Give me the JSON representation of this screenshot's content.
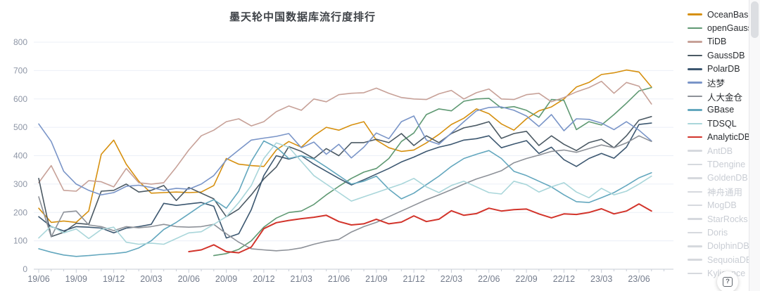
{
  "chart": {
    "title": "墨天轮中国数据库流行度排行"
  },
  "help": {
    "icon_glyph": "?"
  },
  "axes": {
    "y_tick_labels": [
      "0",
      "100",
      "200",
      "300",
      "400",
      "500",
      "600",
      "700",
      "800"
    ],
    "x_tick_labels": [
      "19/06",
      "19/09",
      "19/12",
      "20/03",
      "20/06",
      "20/09",
      "20/12",
      "21/03",
      "21/06",
      "21/09",
      "21/12",
      "22/03",
      "22/06",
      "22/09",
      "22/12",
      "23/03",
      "23/06"
    ]
  },
  "legend": {
    "items": [
      {
        "id": "oceanbase",
        "label": "OceanBase",
        "color": "#D6900F",
        "active": true
      },
      {
        "id": "opengauss",
        "label": "openGauss",
        "color": "#5F9973",
        "active": true
      },
      {
        "id": "tidb",
        "label": "TiDB",
        "color": "#C7A198",
        "active": true
      },
      {
        "id": "gaussdb",
        "label": "GaussDB",
        "color": "#4C5A64",
        "active": true
      },
      {
        "id": "polardb",
        "label": "PolarDB",
        "color": "#3C5770",
        "active": true
      },
      {
        "id": "dameng",
        "label": "达梦",
        "color": "#7A95C8",
        "active": true
      },
      {
        "id": "kingbase",
        "label": "人大金仓",
        "color": "#8D9198",
        "active": true
      },
      {
        "id": "gbase",
        "label": "GBase",
        "color": "#63A7BE",
        "active": true
      },
      {
        "id": "tdsql",
        "label": "TDSQL",
        "color": "#A9D6DA",
        "active": true
      },
      {
        "id": "analyticdb",
        "label": "AnalyticDB",
        "color": "#D2342B",
        "active": true
      },
      {
        "id": "antdb",
        "label": "AntDB",
        "color": "#d6d9de",
        "active": false
      },
      {
        "id": "tdengine",
        "label": "TDengine",
        "color": "#d6d9de",
        "active": false
      },
      {
        "id": "goldendb",
        "label": "GoldenDB",
        "color": "#d6d9de",
        "active": false
      },
      {
        "id": "shenzhou-tongyong",
        "label": "神舟通用",
        "color": "#d6d9de",
        "active": false
      },
      {
        "id": "mogdb",
        "label": "MogDB",
        "color": "#d6d9de",
        "active": false
      },
      {
        "id": "starrocks",
        "label": "StarRocks",
        "color": "#d6d9de",
        "active": false
      },
      {
        "id": "doris",
        "label": "Doris",
        "color": "#d6d9de",
        "active": false
      },
      {
        "id": "dolphindb",
        "label": "DolphinDB",
        "color": "#d6d9de",
        "active": false
      },
      {
        "id": "sequoiadb",
        "label": "SequoiaDB",
        "color": "#d6d9de",
        "active": false
      },
      {
        "id": "kyligence",
        "label": "Kyligence",
        "color": "#d6d9de",
        "active": false
      }
    ]
  },
  "chart_data": {
    "type": "line",
    "title": "墨天轮中国数据库流行度排行",
    "xlabel": "",
    "ylabel": "",
    "ylim": [
      0,
      800
    ],
    "y_ticks": [
      0,
      100,
      200,
      300,
      400,
      500,
      600,
      700,
      800
    ],
    "grid": true,
    "legend_position": "right",
    "x_label_every_n_months": 3,
    "x": [
      "19/06",
      "19/07",
      "19/08",
      "19/09",
      "19/10",
      "19/11",
      "19/12",
      "20/01",
      "20/02",
      "20/03",
      "20/04",
      "20/05",
      "20/06",
      "20/07",
      "20/08",
      "20/09",
      "20/10",
      "20/11",
      "20/12",
      "21/01",
      "21/02",
      "21/03",
      "21/04",
      "21/05",
      "21/06",
      "21/07",
      "21/08",
      "21/09",
      "21/10",
      "21/11",
      "21/12",
      "22/01",
      "22/02",
      "22/03",
      "22/04",
      "22/05",
      "22/06",
      "22/07",
      "22/08",
      "22/09",
      "22/10",
      "22/11",
      "22/12",
      "23/01",
      "23/02",
      "23/03",
      "23/04",
      "23/05",
      "23/06",
      "23/07"
    ],
    "series": [
      {
        "id": "oceanbase",
        "name": "OceanBase",
        "color": "#D6900F",
        "values": [
          215,
          165,
          170,
          165,
          205,
          405,
          455,
          370,
          310,
          268,
          270,
          272,
          270,
          272,
          295,
          390,
          370,
          365,
          362,
          420,
          450,
          430,
          470,
          500,
          490,
          508,
          520,
          455,
          428,
          415,
          420,
          445,
          475,
          510,
          532,
          565,
          548,
          512,
          490,
          530,
          558,
          572,
          600,
          642,
          658,
          686,
          692,
          702,
          695,
          642
        ]
      },
      {
        "id": "opengauss",
        "name": "openGauss",
        "color": "#5F9973",
        "values": [
          null,
          null,
          null,
          null,
          null,
          null,
          null,
          null,
          null,
          null,
          null,
          null,
          null,
          null,
          48,
          55,
          70,
          100,
          148,
          180,
          200,
          205,
          228,
          262,
          292,
          320,
          342,
          355,
          390,
          450,
          480,
          545,
          565,
          558,
          592,
          600,
          602,
          568,
          573,
          560,
          535,
          598,
          595,
          492,
          520,
          508,
          545,
          585,
          628,
          640
        ]
      },
      {
        "id": "tidb",
        "name": "TiDB",
        "color": "#C7A198",
        "values": [
          305,
          365,
          278,
          275,
          312,
          308,
          290,
          355,
          305,
          300,
          305,
          360,
          420,
          470,
          490,
          520,
          530,
          505,
          520,
          555,
          575,
          560,
          600,
          590,
          615,
          620,
          622,
          638,
          620,
          605,
          600,
          598,
          618,
          630,
          600,
          622,
          635,
          600,
          598,
          615,
          620,
          590,
          605,
          625,
          640,
          662,
          620,
          658,
          645,
          582
        ]
      },
      {
        "id": "gaussdb",
        "name": "GaussDB",
        "color": "#4C5A64",
        "values": [
          320,
          115,
          130,
          162,
          158,
          275,
          278,
          300,
          272,
          278,
          295,
          242,
          288,
          268,
          248,
          185,
          212,
          262,
          318,
          360,
          432,
          415,
          390,
          425,
          400,
          446,
          446,
          458,
          446,
          478,
          436,
          470,
          446,
          478,
          498,
          507,
          520,
          461,
          478,
          486,
          436,
          470,
          440,
          418,
          446,
          458,
          428,
          470,
          525,
          538
        ]
      },
      {
        "id": "polardb",
        "name": "PolarDB",
        "color": "#3C5770",
        "values": [
          185,
          150,
          135,
          150,
          148,
          145,
          128,
          145,
          150,
          158,
          232,
          225,
          230,
          235,
          222,
          110,
          125,
          210,
          330,
          400,
          388,
          400,
          370,
          345,
          320,
          297,
          315,
          335,
          355,
          378,
          395,
          415,
          430,
          440,
          455,
          460,
          470,
          428,
          441,
          453,
          408,
          430,
          386,
          362,
          390,
          408,
          391,
          430,
          510,
          515
        ]
      },
      {
        "id": "dameng",
        "name": "达梦",
        "color": "#7A95C8",
        "values": [
          512,
          450,
          345,
          300,
          278,
          262,
          270,
          292,
          296,
          288,
          278,
          285,
          282,
          300,
          330,
          385,
          420,
          455,
          462,
          468,
          478,
          428,
          448,
          405,
          440,
          392,
          430,
          480,
          460,
          520,
          540,
          455,
          440,
          480,
          520,
          558,
          570,
          572,
          560,
          540,
          503,
          545,
          488,
          530,
          528,
          515,
          492,
          520,
          490,
          452
        ]
      },
      {
        "id": "kingbase",
        "name": "人大金仓",
        "color": "#8D9198",
        "values": [
          255,
          114,
          201,
          205,
          156,
          150,
          136,
          150,
          146,
          150,
          158,
          150,
          148,
          150,
          158,
          125,
          95,
          72,
          68,
          65,
          68,
          75,
          88,
          98,
          105,
          131,
          150,
          165,
          185,
          205,
          225,
          245,
          262,
          280,
          300,
          318,
          332,
          347,
          375,
          390,
          402,
          415,
          420,
          412,
          425,
          438,
          428,
          445,
          470,
          450
        ]
      },
      {
        "id": "gbase",
        "name": "GBase",
        "color": "#63A7BE",
        "values": [
          72,
          60,
          50,
          45,
          48,
          52,
          55,
          60,
          75,
          100,
          140,
          165,
          195,
          225,
          245,
          215,
          275,
          380,
          452,
          430,
          390,
          400,
          388,
          360,
          330,
          300,
          310,
          328,
          282,
          248,
          268,
          298,
          328,
          362,
          390,
          405,
          418,
          390,
          345,
          330,
          310,
          290,
          262,
          238,
          235,
          252,
          270,
          295,
          322,
          340
        ]
      },
      {
        "id": "tdsql",
        "name": "TDSQL",
        "color": "#A9D6DA",
        "values": [
          110,
          152,
          128,
          142,
          108,
          140,
          148,
          95,
          88,
          92,
          88,
          108,
          128,
          132,
          158,
          185,
          235,
          295,
          390,
          445,
          430,
          380,
          330,
          300,
          270,
          240,
          255,
          270,
          285,
          300,
          320,
          290,
          270,
          295,
          310,
          290,
          270,
          265,
          310,
          298,
          272,
          290,
          305,
          272,
          252,
          285,
          262,
          275,
          300,
          328
        ]
      },
      {
        "id": "analyticdb",
        "name": "AnalyticDB",
        "color": "#D2342B",
        "values": [
          null,
          null,
          null,
          null,
          null,
          null,
          null,
          null,
          null,
          null,
          null,
          null,
          62,
          68,
          86,
          62,
          58,
          78,
          143,
          164,
          172,
          178,
          183,
          190,
          168,
          156,
          160,
          176,
          160,
          166,
          188,
          168,
          176,
          206,
          190,
          196,
          215,
          205,
          210,
          212,
          195,
          181,
          195,
          193,
          200,
          213,
          195,
          205,
          230,
          205
        ]
      }
    ],
    "disabled_series": [
      "AntDB",
      "TDengine",
      "GoldenDB",
      "神舟通用",
      "MogDB",
      "StarRocks",
      "Doris",
      "DolphinDB",
      "SequoiaDB",
      "Kyligence"
    ]
  }
}
